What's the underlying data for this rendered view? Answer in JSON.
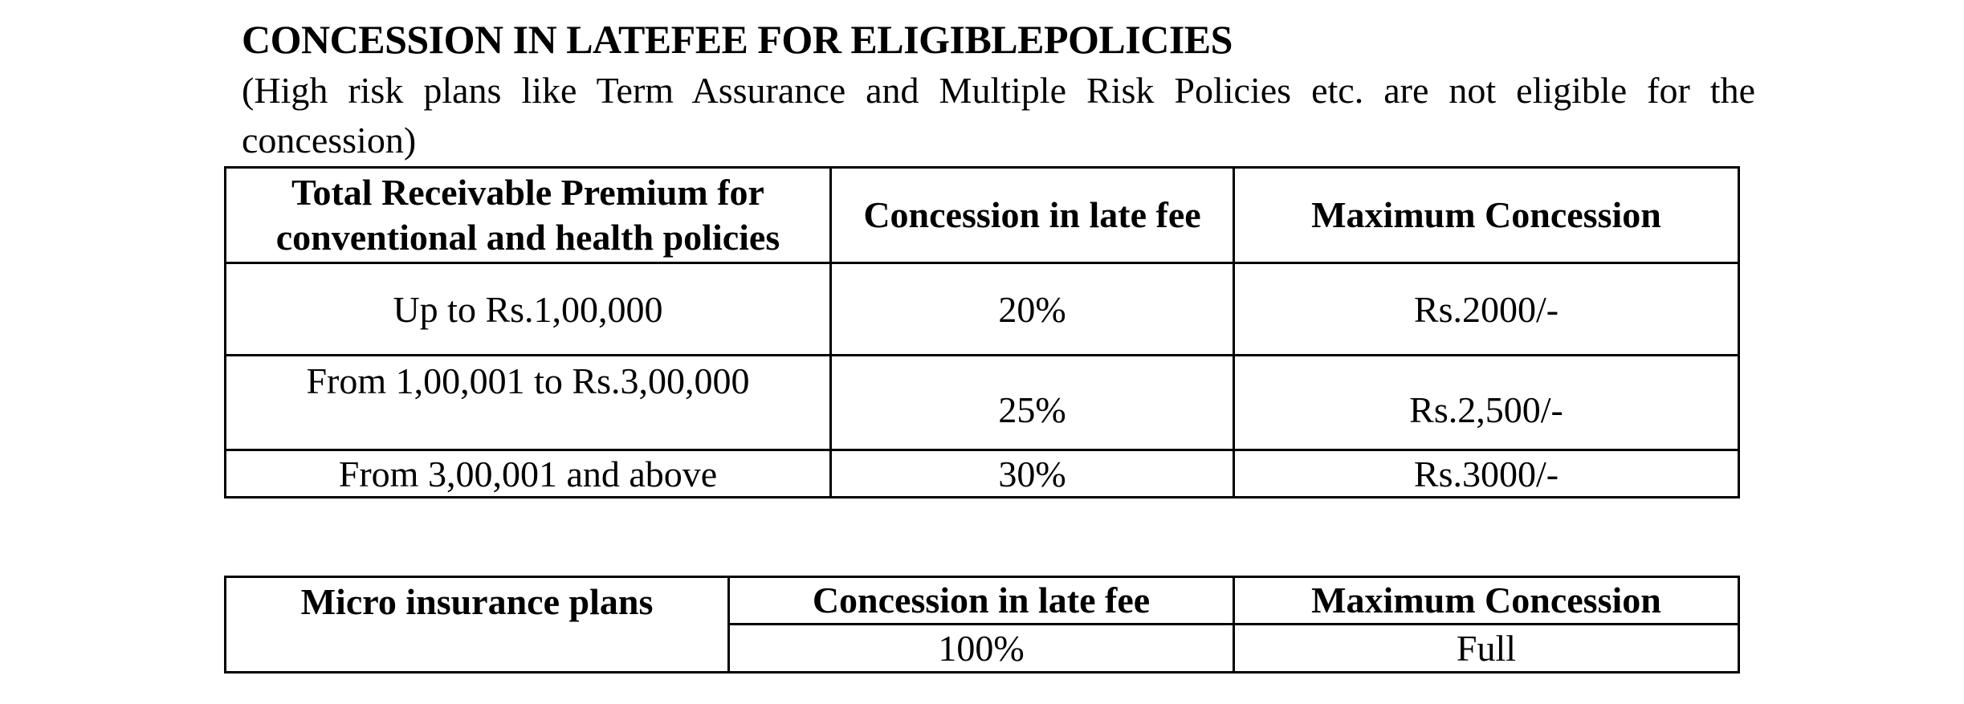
{
  "title": "CONCESSION IN LATEFEE FOR ELIGIBLEPOLICIES",
  "note": "(High risk plans like Term Assurance and Multiple Risk Policies etc. are not eligible for the concession)",
  "table_conventional": {
    "headers": [
      "Total Receivable Premium for conventional and health policies",
      "Concession in late fee",
      "Maximum Concession"
    ],
    "rows": [
      [
        "Up to Rs.1,00,000",
        "20%",
        "Rs.2000/-"
      ],
      [
        "From 1,00,001 to Rs.3,00,000",
        "25%",
        "Rs.2,500/-"
      ],
      [
        "From 3,00,001  and above",
        "30%",
        "Rs.3000/-"
      ]
    ]
  },
  "table_micro": {
    "headers": [
      "Micro  insurance plans",
      "Concession in late fee",
      "Maximum Concession"
    ],
    "row": [
      "100%",
      "Full"
    ]
  }
}
